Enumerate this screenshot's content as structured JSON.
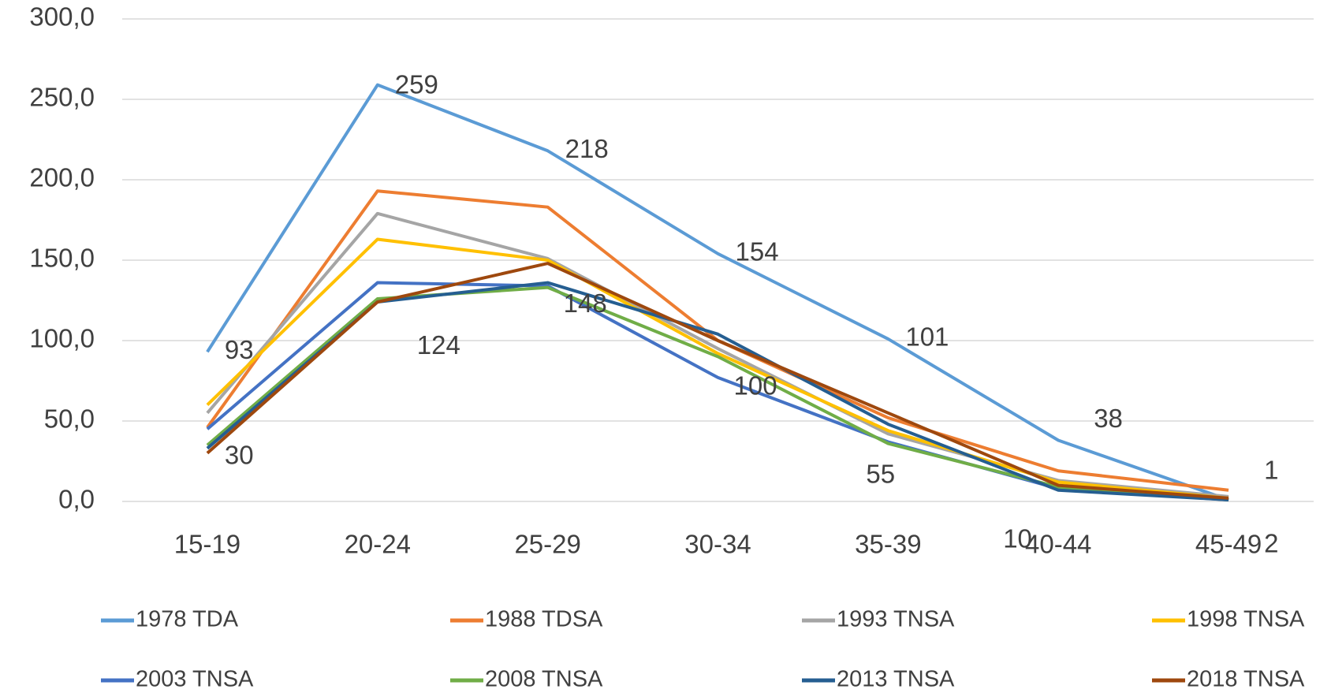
{
  "chart_data": {
    "type": "line",
    "categories": [
      "15-19",
      "20-24",
      "25-29",
      "30-34",
      "35-39",
      "40-44",
      "45-49"
    ],
    "series": [
      {
        "name": "1978 TDA",
        "color": "#5b9bd5",
        "values": [
          93,
          259,
          218,
          154,
          101,
          38,
          1
        ]
      },
      {
        "name": "1988 TDSA",
        "color": "#ed7d31",
        "values": [
          46,
          193,
          183,
          100,
          52,
          19,
          7
        ]
      },
      {
        "name": "1993 TNSA",
        "color": "#a5a5a5",
        "values": [
          55,
          179,
          151,
          95,
          42,
          13,
          3
        ]
      },
      {
        "name": "1998 TNSA",
        "color": "#ffc000",
        "values": [
          60,
          163,
          150,
          92,
          44,
          12,
          2
        ]
      },
      {
        "name": "2003 TNSA",
        "color": "#4472c4",
        "values": [
          45,
          136,
          134,
          77,
          37,
          8,
          1
        ]
      },
      {
        "name": "2008 TNSA",
        "color": "#70ad47",
        "values": [
          35,
          126,
          133,
          90,
          36,
          9,
          1
        ]
      },
      {
        "name": "2013 TNSA",
        "color": "#255e91",
        "values": [
          33,
          124,
          136,
          104,
          48,
          7,
          1
        ]
      },
      {
        "name": "2018 TNSA",
        "color": "#9e480e",
        "values": [
          30,
          124,
          148,
          100,
          55,
          10,
          2
        ]
      }
    ],
    "ylim": [
      0,
      300
    ],
    "yticks": [
      {
        "value": 0,
        "label": "0,0"
      },
      {
        "value": 50,
        "label": "50,0"
      },
      {
        "value": 100,
        "label": "100,0"
      },
      {
        "value": 150,
        "label": "150,0"
      },
      {
        "value": 200,
        "label": "200,0"
      },
      {
        "value": 250,
        "label": "250,0"
      },
      {
        "value": 300,
        "label": "300,0"
      }
    ],
    "grid": true,
    "legend": "bottom"
  }
}
